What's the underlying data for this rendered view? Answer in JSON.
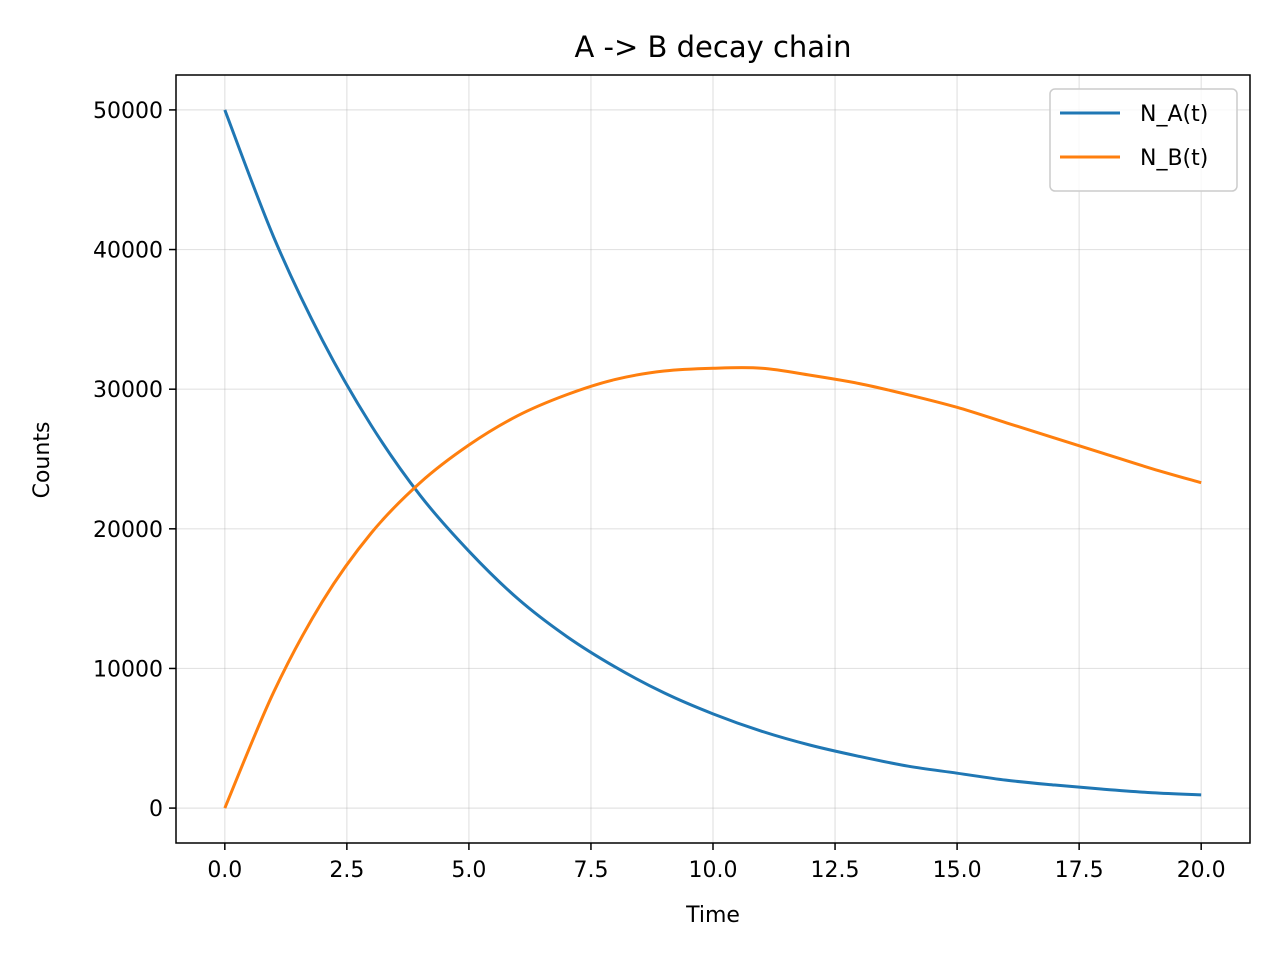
{
  "chart_data": {
    "type": "line",
    "title": "A -> B decay chain",
    "xlabel": "Time",
    "ylabel": "Counts",
    "xlim": [
      -1,
      21
    ],
    "ylim": [
      -2500,
      52500
    ],
    "xticks": [
      0,
      2.5,
      5,
      7.5,
      10,
      12.5,
      15,
      17.5,
      20
    ],
    "xtick_labels": [
      "0.0",
      "2.5",
      "5.0",
      "7.5",
      "10.0",
      "12.5",
      "15.0",
      "17.5",
      "20.0"
    ],
    "yticks": [
      0,
      10000,
      20000,
      30000,
      40000,
      50000
    ],
    "ytick_labels": [
      "0",
      "10000",
      "20000",
      "30000",
      "40000",
      "50000"
    ],
    "grid": true,
    "legend_position": "top-right",
    "x": [
      0,
      1,
      2,
      3,
      4,
      5,
      6,
      7,
      8,
      9,
      10,
      11,
      12,
      13,
      14,
      15,
      16,
      17,
      18,
      19,
      20
    ],
    "series": [
      {
        "name": "N_A(t)",
        "color": "#1f77b4",
        "values": [
          50000,
          40900,
          33500,
          27400,
          22400,
          18400,
          15000,
          12300,
          10100,
          8250,
          6750,
          5500,
          4500,
          3700,
          3000,
          2500,
          2000,
          1650,
          1350,
          1100,
          950
        ]
      },
      {
        "name": "N_B(t)",
        "color": "#ff7f0e",
        "values": [
          0,
          8300,
          14800,
          19700,
          23300,
          26000,
          28100,
          29600,
          30700,
          31300,
          31500,
          31500,
          31000,
          30400,
          29600,
          28700,
          27600,
          26500,
          25400,
          24300,
          23300
        ]
      }
    ]
  }
}
